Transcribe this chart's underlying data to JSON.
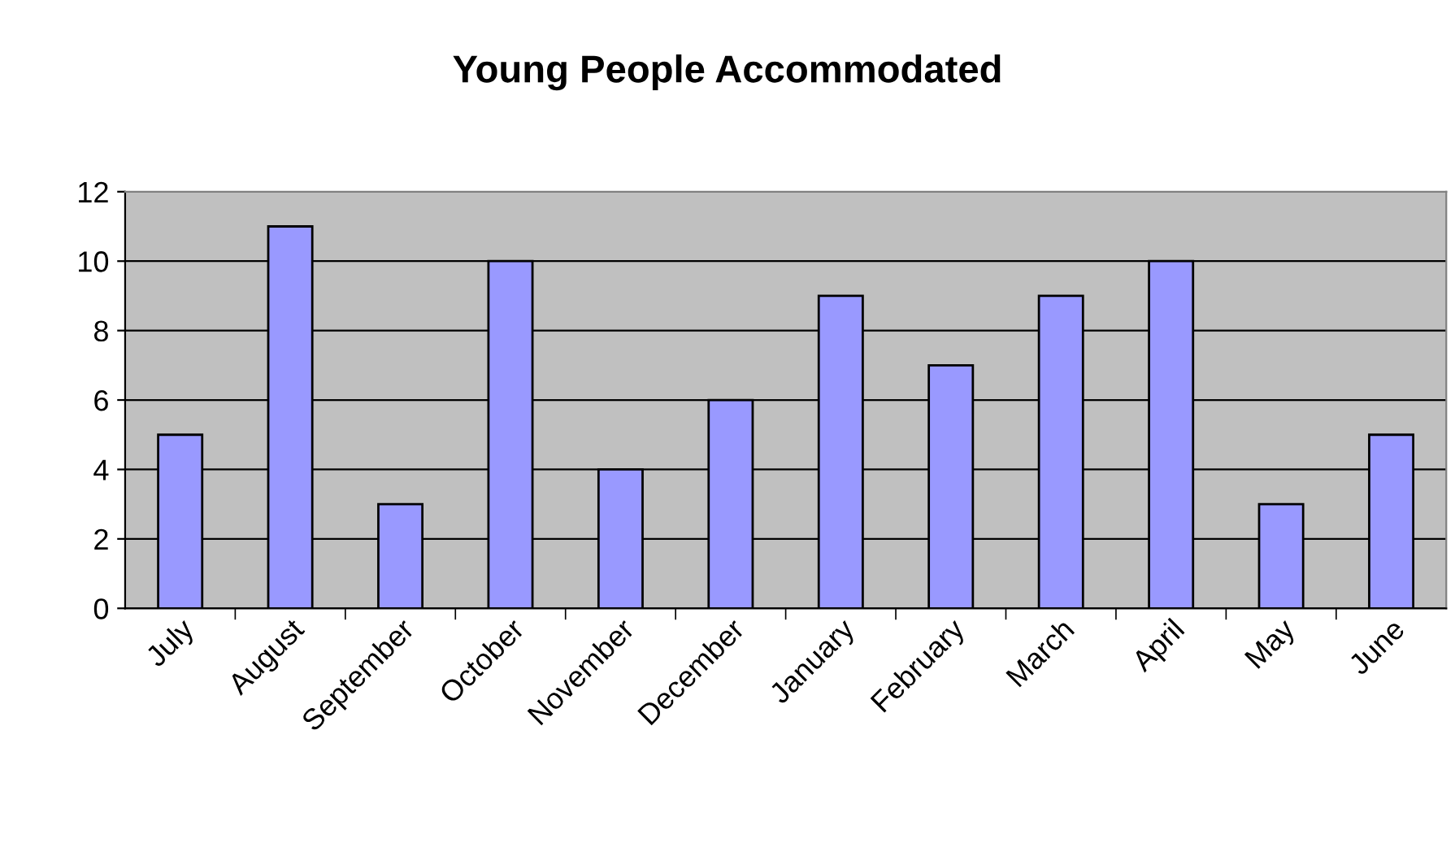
{
  "chart_data": {
    "type": "bar",
    "title": "Young People Accommodated",
    "categories": [
      "July",
      "August",
      "September",
      "October",
      "November",
      "December",
      "January",
      "February",
      "March",
      "April",
      "May",
      "June"
    ],
    "values": [
      5,
      11,
      3,
      10,
      4,
      6,
      9,
      7,
      9,
      10,
      3,
      5
    ],
    "color": "#9999ff",
    "ylim": [
      0,
      12
    ],
    "yticks": [
      0,
      2,
      4,
      6,
      8,
      10,
      12
    ],
    "grid": "y",
    "legend": false
  }
}
